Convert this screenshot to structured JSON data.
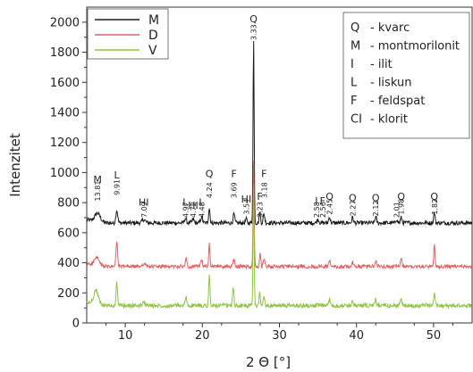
{
  "chart_data": {
    "type": "line",
    "title": "",
    "xlabel": "2 Θ [°]",
    "ylabel": "Intenzitet",
    "xlim": [
      5,
      55
    ],
    "ylim": [
      0,
      2100
    ],
    "x_ticks": [
      10,
      20,
      30,
      40,
      50
    ],
    "y_ticks": [
      0,
      200,
      400,
      600,
      800,
      1000,
      1200,
      1400,
      1600,
      1800,
      2000
    ],
    "grid": false,
    "series": [
      {
        "name": "M",
        "color": "#1a1a1a",
        "baseline": 665,
        "noise": 14,
        "peaks": [
          {
            "x": 6.4,
            "h": 55,
            "w": 0.35
          },
          {
            "x": 8.9,
            "h": 85,
            "w": 0.12
          },
          {
            "x": 12.4,
            "h": 22,
            "w": 0.2
          },
          {
            "x": 17.8,
            "h": 30,
            "w": 0.12
          },
          {
            "x": 18.8,
            "h": 25,
            "w": 0.12
          },
          {
            "x": 19.9,
            "h": 40,
            "w": 0.12
          },
          {
            "x": 20.9,
            "h": 100,
            "w": 0.09
          },
          {
            "x": 24.1,
            "h": 60,
            "w": 0.1
          },
          {
            "x": 25.7,
            "h": 25,
            "w": 0.1
          },
          {
            "x": 26.65,
            "h": 1220,
            "w": 0.07
          },
          {
            "x": 27.45,
            "h": 80,
            "w": 0.08
          },
          {
            "x": 28.0,
            "h": 60,
            "w": 0.1
          },
          {
            "x": 35.0,
            "h": 25,
            "w": 0.12
          },
          {
            "x": 36.5,
            "h": 40,
            "w": 0.1
          },
          {
            "x": 39.5,
            "h": 38,
            "w": 0.1
          },
          {
            "x": 42.5,
            "h": 40,
            "w": 0.1
          },
          {
            "x": 45.2,
            "h": 25,
            "w": 0.1
          },
          {
            "x": 45.8,
            "h": 35,
            "w": 0.1
          },
          {
            "x": 50.1,
            "h": 70,
            "w": 0.09
          }
        ]
      },
      {
        "name": "D",
        "color": "#e06060",
        "baseline": 375,
        "noise": 12,
        "peaks": [
          {
            "x": 6.3,
            "h": 50,
            "w": 0.3
          },
          {
            "x": 8.9,
            "h": 165,
            "w": 0.1
          },
          {
            "x": 12.4,
            "h": 18,
            "w": 0.2
          },
          {
            "x": 17.9,
            "h": 60,
            "w": 0.1
          },
          {
            "x": 19.9,
            "h": 40,
            "w": 0.12
          },
          {
            "x": 20.9,
            "h": 150,
            "w": 0.08
          },
          {
            "x": 24.1,
            "h": 50,
            "w": 0.1
          },
          {
            "x": 26.65,
            "h": 720,
            "w": 0.07
          },
          {
            "x": 27.5,
            "h": 80,
            "w": 0.08
          },
          {
            "x": 28.0,
            "h": 50,
            "w": 0.1
          },
          {
            "x": 36.5,
            "h": 40,
            "w": 0.1
          },
          {
            "x": 39.5,
            "h": 30,
            "w": 0.1
          },
          {
            "x": 42.5,
            "h": 40,
            "w": 0.1
          },
          {
            "x": 45.8,
            "h": 60,
            "w": 0.09
          },
          {
            "x": 50.1,
            "h": 140,
            "w": 0.08
          }
        ]
      },
      {
        "name": "V",
        "color": "#8cc63e",
        "baseline": 115,
        "noise": 14,
        "peaks": [
          {
            "x": 6.2,
            "h": 90,
            "w": 0.3
          },
          {
            "x": 8.9,
            "h": 150,
            "w": 0.1
          },
          {
            "x": 12.4,
            "h": 18,
            "w": 0.2
          },
          {
            "x": 17.9,
            "h": 55,
            "w": 0.1
          },
          {
            "x": 20.9,
            "h": 200,
            "w": 0.08
          },
          {
            "x": 24.0,
            "h": 120,
            "w": 0.09
          },
          {
            "x": 26.65,
            "h": 800,
            "w": 0.07
          },
          {
            "x": 27.45,
            "h": 90,
            "w": 0.08
          },
          {
            "x": 28.0,
            "h": 70,
            "w": 0.1
          },
          {
            "x": 36.5,
            "h": 40,
            "w": 0.1
          },
          {
            "x": 39.5,
            "h": 35,
            "w": 0.1
          },
          {
            "x": 42.5,
            "h": 40,
            "w": 0.1
          },
          {
            "x": 45.8,
            "h": 55,
            "w": 0.09
          },
          {
            "x": 50.1,
            "h": 80,
            "w": 0.09
          }
        ]
      }
    ],
    "peak_labels": [
      {
        "letter": "M",
        "d": "13.81",
        "x": 6.4,
        "y_letter": 930,
        "y_d": 810
      },
      {
        "letter": "L",
        "d": "9.91",
        "x": 8.9,
        "y_letter": 960,
        "y_d": 850
      },
      {
        "letter": "HI",
        "d": "7.09",
        "x": 12.4,
        "y_letter": 780,
        "y_d": 700
      },
      {
        "letter": "L",
        "d": "4.97",
        "x": 17.8,
        "y_letter": 780,
        "y_d": 700
      },
      {
        "letter": "HI",
        "d": "4.72",
        "x": 18.8,
        "y_letter": 760,
        "y_d": 700
      },
      {
        "letter": "L",
        "d": "4.48",
        "x": 19.9,
        "y_letter": 780,
        "y_d": 700
      },
      {
        "letter": "Q",
        "d": "4.24",
        "x": 20.9,
        "y_letter": 970,
        "y_d": 830
      },
      {
        "letter": "F",
        "d": "3.69",
        "x": 24.1,
        "y_letter": 970,
        "y_d": 830
      },
      {
        "letter": "HI",
        "d": "3.54",
        "x": 25.7,
        "y_letter": 800,
        "y_d": 720
      },
      {
        "letter": "Q",
        "d": "3.33",
        "x": 26.65,
        "y_letter": 2000,
        "y_d": 1880
      },
      {
        "letter": "F",
        "d": "3.23",
        "x": 27.45,
        "y_letter": 820,
        "y_d": 700
      },
      {
        "letter": "F",
        "d": "3.18",
        "x": 28.0,
        "y_letter": 970,
        "y_d": 830
      },
      {
        "letter": "I",
        "d": "2.58",
        "x": 34.8,
        "y_letter": 790,
        "y_d": 700
      },
      {
        "letter": "F",
        "d": "2.56",
        "x": 35.6,
        "y_letter": 790,
        "y_d": 700
      },
      {
        "letter": "Q",
        "d": "2.45",
        "x": 36.5,
        "y_letter": 820,
        "y_d": 720
      },
      {
        "letter": "Q",
        "d": "2.27",
        "x": 39.5,
        "y_letter": 810,
        "y_d": 710
      },
      {
        "letter": "Q",
        "d": "2.12",
        "x": 42.5,
        "y_letter": 810,
        "y_d": 710
      },
      {
        "letter": "",
        "d": "2.01",
        "x": 45.2,
        "y_letter": 0,
        "y_d": 700
      },
      {
        "letter": "Q",
        "d": "1.98",
        "x": 45.8,
        "y_letter": 820,
        "y_d": 720
      },
      {
        "letter": "Q",
        "d": "1.82",
        "x": 50.1,
        "y_letter": 820,
        "y_d": 720
      }
    ],
    "legend": {
      "placement": "top-left",
      "entries": [
        {
          "label": "M",
          "color": "#1a1a1a"
        },
        {
          "label": "D",
          "color": "#e06060"
        },
        {
          "label": "V",
          "color": "#8cc63e"
        }
      ]
    },
    "key_box": {
      "placement": "top-right",
      "entries": [
        {
          "sym": "Q",
          "desc": "- kvarc"
        },
        {
          "sym": "M",
          "desc": "- montmorilonit"
        },
        {
          "sym": "I",
          "desc": "- ilit"
        },
        {
          "sym": "L",
          "desc": "- liskun"
        },
        {
          "sym": "F",
          "desc": "- feldspat"
        },
        {
          "sym": "CI",
          "desc": "- klorit"
        }
      ]
    }
  }
}
